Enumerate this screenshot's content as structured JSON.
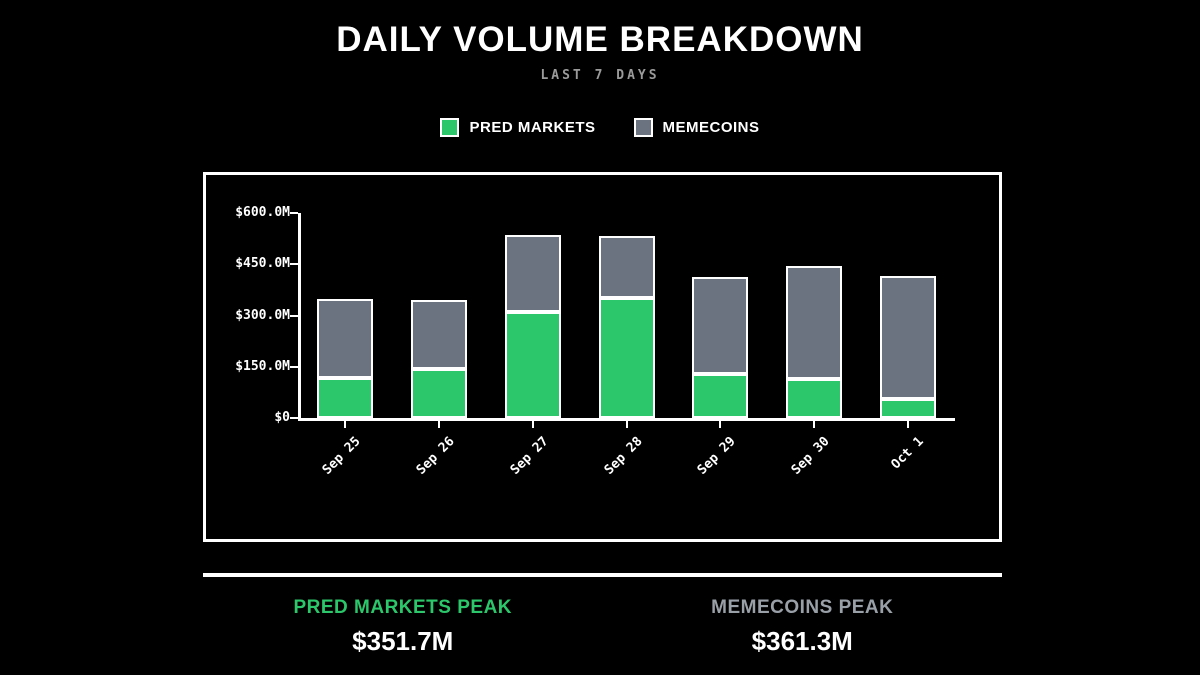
{
  "colors": {
    "background": "#000000",
    "pred_green": "#2bc76a",
    "meme_gray": "#6b7280",
    "axis_white": "#ffffff",
    "subtitle_gray": "#9b9b9b",
    "meme_label_gray": "#9aa0a8"
  },
  "chart_data": {
    "type": "bar",
    "stacked": true,
    "title": "DAILY VOLUME BREAKDOWN",
    "subtitle": "LAST 7 DAYS",
    "unit": "USD millions",
    "categories": [
      "Sep 25",
      "Sep 26",
      "Sep 27",
      "Sep 28",
      "Sep 29",
      "Sep 30",
      "Oct 1"
    ],
    "series": [
      {
        "name": "PRED MARKETS",
        "color": "#2bc76a",
        "values": [
          117,
          143,
          309,
          351.7,
          130,
          115,
          55
        ]
      },
      {
        "name": "MEMECOINS",
        "color": "#6b7280",
        "values": [
          230,
          202,
          225,
          181,
          283,
          330,
          361.3
        ]
      }
    ],
    "ylim": [
      0,
      600
    ],
    "yticks": [
      {
        "value": 600,
        "label": "$600.0M"
      },
      {
        "value": 450,
        "label": "$450.0M"
      },
      {
        "value": 300,
        "label": "$300.0M"
      },
      {
        "value": 150,
        "label": "$150.0M"
      },
      {
        "value": 0,
        "label": "$0"
      }
    ],
    "grid": false,
    "legend_position": "top"
  },
  "stats": {
    "pred": {
      "label": "PRED MARKETS PEAK",
      "value": "$351.7M"
    },
    "meme": {
      "label": "MEMECOINS PEAK",
      "value": "$361.3M"
    }
  }
}
